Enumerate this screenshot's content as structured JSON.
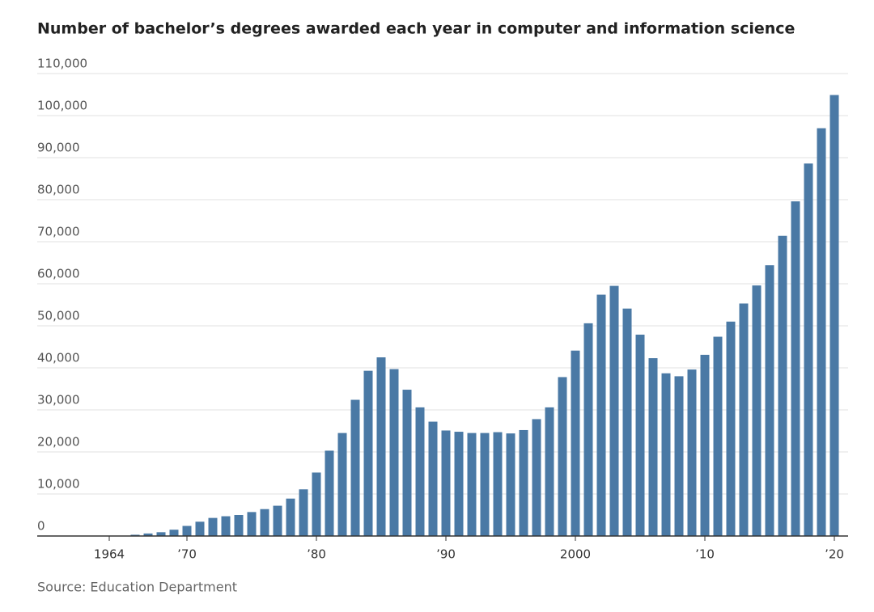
{
  "chart_data": {
    "type": "bar",
    "title": "Number of bachelor’s degrees awarded each year in computer and information science",
    "source": "Source: Education Department",
    "categories": [
      "1964",
      null,
      null,
      null,
      null,
      null,
      "’70",
      null,
      null,
      null,
      null,
      null,
      null,
      null,
      null,
      null,
      "’80",
      null,
      null,
      null,
      null,
      null,
      null,
      null,
      null,
      null,
      "’90",
      null,
      null,
      null,
      null,
      null,
      null,
      null,
      null,
      null,
      "2000",
      null,
      null,
      null,
      null,
      null,
      null,
      null,
      null,
      null,
      "’10",
      null,
      null,
      null,
      null,
      null,
      null,
      null,
      null,
      null,
      "’20"
    ],
    "values": [
      null,
      null,
      300,
      600,
      900,
      1500,
      2400,
      3400,
      4300,
      4700,
      5000,
      5700,
      6400,
      7200,
      8900,
      11100,
      15100,
      20300,
      24500,
      32400,
      39300,
      42500,
      39700,
      34800,
      30600,
      27200,
      25100,
      24800,
      24500,
      24500,
      24700,
      24400,
      25200,
      27800,
      30600,
      37800,
      44100,
      50600,
      57400,
      59500,
      54100,
      47900,
      42300,
      38700,
      38000,
      39600,
      43100,
      47400,
      51000,
      55300,
      59600,
      64400,
      71400,
      79600,
      88600,
      97000,
      104900
    ],
    "color": "#4a79a5",
    "ylim": [
      0,
      110000
    ],
    "yticks": [
      0,
      {
        "value": 10000,
        "label": "10,000"
      },
      {
        "value": 20000,
        "label": "20,000"
      },
      {
        "value": 30000,
        "label": "30,000"
      },
      {
        "value": 40000,
        "label": "40,000"
      },
      {
        "value": 50000,
        "label": "50,000"
      },
      {
        "value": 60000,
        "label": "60,000"
      },
      {
        "value": 70000,
        "label": "70,000"
      },
      {
        "value": 80000,
        "label": "80,000"
      },
      {
        "value": 90000,
        "label": "90,000"
      },
      {
        "value": 100000,
        "label": "100,000"
      },
      {
        "value": 110000,
        "label": "110,000"
      }
    ],
    "grid": true
  }
}
